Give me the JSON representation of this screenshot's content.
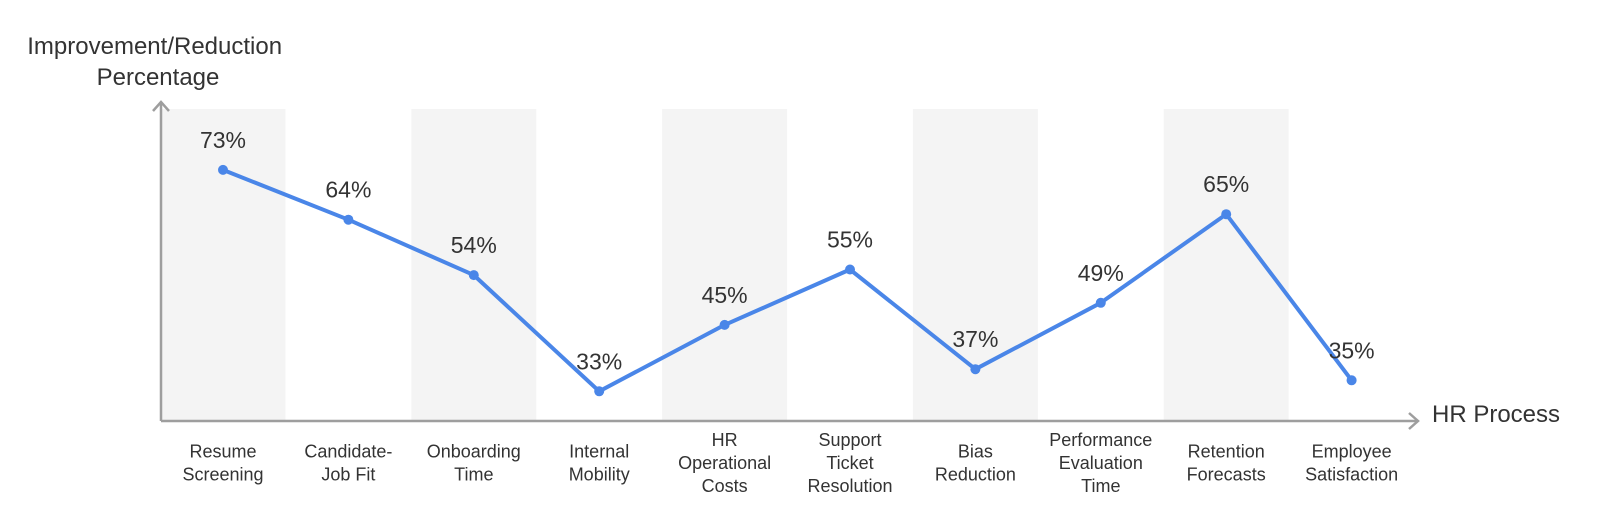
{
  "chart_data": {
    "type": "line",
    "title": "",
    "ylabel": "Improvement/Reduction Percentage",
    "ylabel_lines": [
      "Improvement/Reduction",
      "Percentage"
    ],
    "xlabel": "HR Process",
    "categories": [
      "Resume Screening",
      "Candidate-Job Fit",
      "Onboarding Time",
      "Internal Mobility",
      "HR Operational Costs",
      "Support Ticket Resolution",
      "Bias Reduction",
      "Performance Evaluation Time",
      "Retention Forecasts",
      "Employee Satisfaction"
    ],
    "category_lines": [
      [
        "Resume",
        "Screening"
      ],
      [
        "Candidate-",
        "Job Fit"
      ],
      [
        "Onboarding",
        "Time"
      ],
      [
        "Internal",
        "Mobility"
      ],
      [
        "HR",
        "Operational",
        "Costs"
      ],
      [
        "Support",
        "Ticket",
        "Resolution"
      ],
      [
        "Bias",
        "Reduction"
      ],
      [
        "Performance",
        "Evaluation",
        "Time"
      ],
      [
        "Retention",
        "Forecasts"
      ],
      [
        "Employee",
        "Satisfaction"
      ]
    ],
    "values": [
      73,
      64,
      54,
      33,
      45,
      55,
      37,
      49,
      65,
      35
    ],
    "value_labels": [
      "73%",
      "64%",
      "54%",
      "33%",
      "45%",
      "55%",
      "37%",
      "49%",
      "65%",
      "35%"
    ],
    "ylim": [
      28,
      84
    ],
    "grid": false,
    "band_stripes": true,
    "colors": {
      "line": "#4a86e8",
      "axis": "#9e9e9e",
      "band": "#f4f4f4",
      "text": "#333333"
    }
  }
}
